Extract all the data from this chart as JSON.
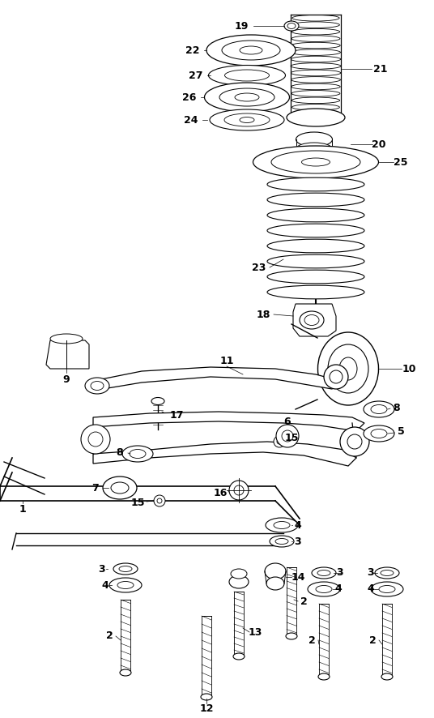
{
  "bg_color": "#ffffff",
  "line_color": "#000000",
  "figsize": [
    5.36,
    8.86
  ],
  "dpi": 100
}
